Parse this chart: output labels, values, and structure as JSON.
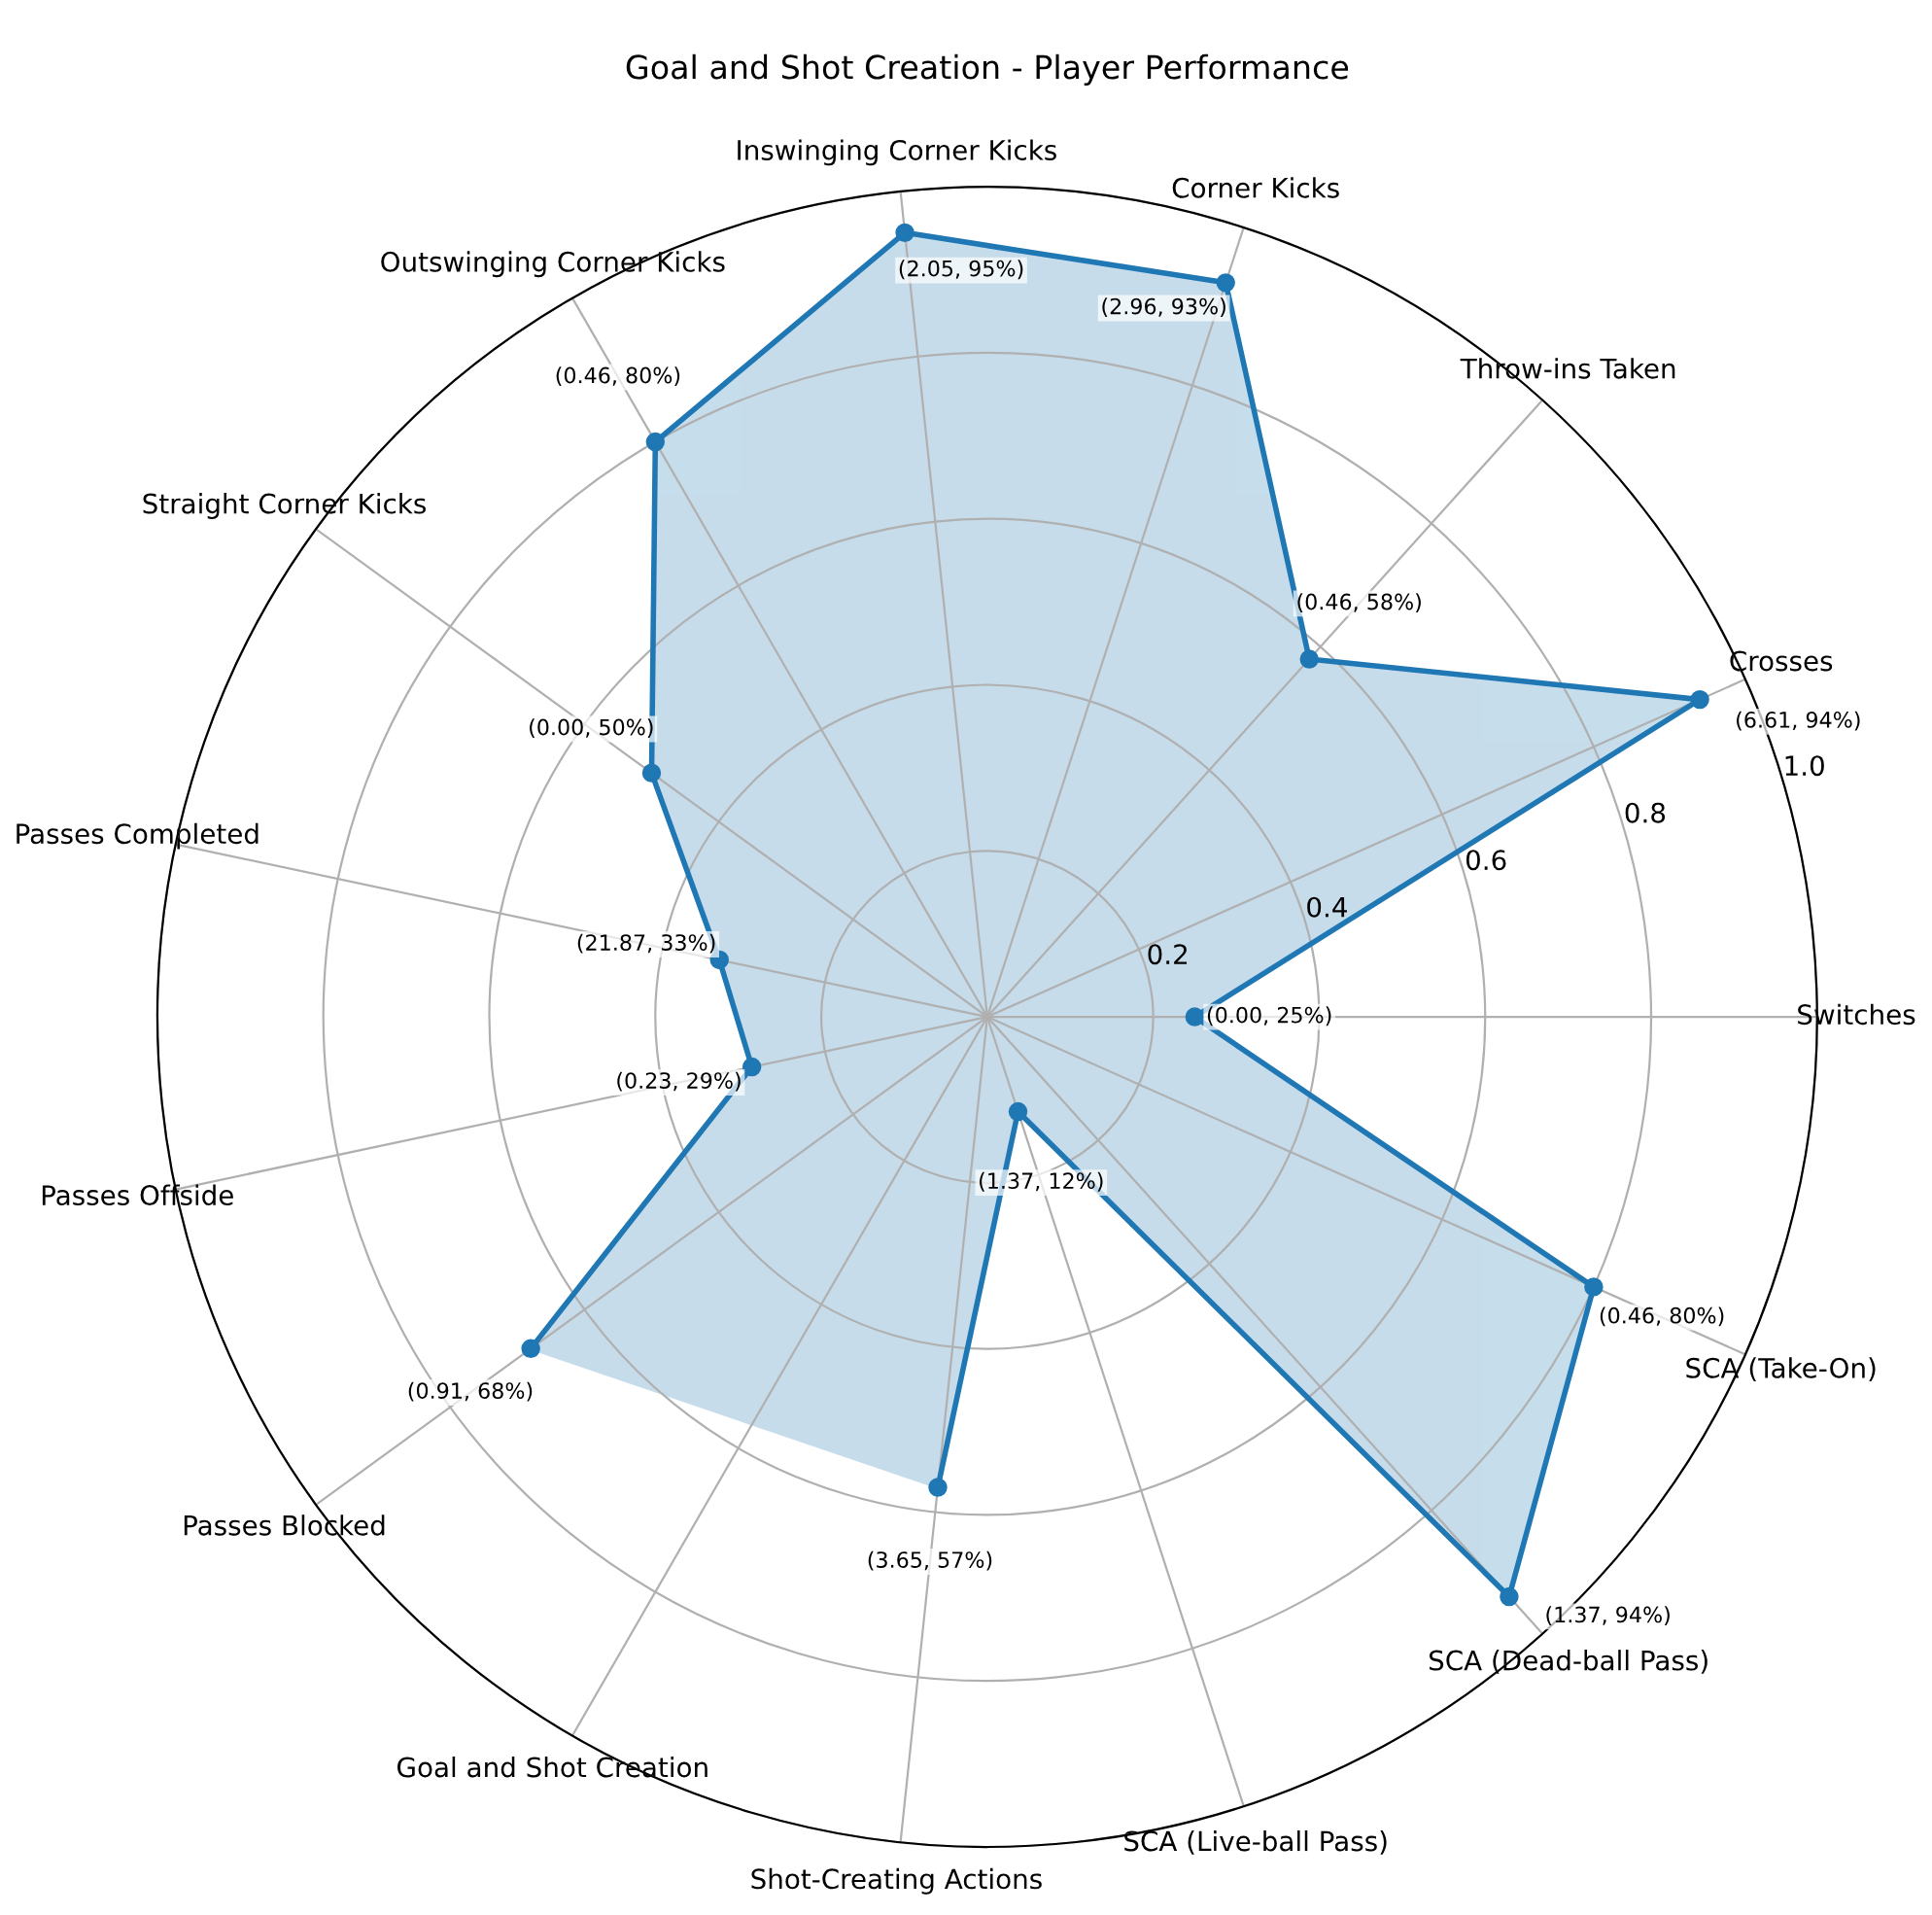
{
  "chart_data": {
    "type": "radar",
    "title": "Goal and Shot Creation - Player Performance",
    "categories": [
      "Inswinging Corner Kicks",
      "Corner Kicks",
      "Throw-ins Taken",
      "Crosses",
      "Switches",
      "SCA (Take-On)",
      "SCA (Dead-ball Pass)",
      "SCA (Live-ball Pass)",
      "Shot-Creating Actions",
      "Goal and Shot Creation",
      "Passes Blocked",
      "Passes Offside",
      "Passes Completed",
      "Straight Corner Kicks",
      "Outswinging Corner Kicks"
    ],
    "series": [
      {
        "color": "#1f77b4",
        "values": [
          0.95,
          0.93,
          0.58,
          0.94,
          0.25,
          0.8,
          0.94,
          0.12,
          0.57,
          null,
          0.68,
          0.29,
          0.33,
          0.5,
          0.8
        ],
        "value_labels": [
          "(2.05, 95%)",
          "(2.96, 93%)",
          "(0.46, 58%)",
          "(6.61, 94%)",
          "(0.00, 25%)",
          "(0.46, 80%)",
          "(1.37, 94%)",
          "(1.37, 12%)",
          "(3.65, 57%)",
          null,
          "(0.91, 68%)",
          "(0.23, 29%)",
          "(21.87, 33%)",
          "(0.00, 50%)",
          "(0.46, 80%)"
        ]
      }
    ],
    "ylim": [
      0,
      1
    ],
    "yticks": [
      0.2,
      0.4,
      0.6,
      0.8,
      {
        "value": 1,
        "label": "1.0"
      }
    ],
    "grid": true,
    "marker": "circle",
    "line_style": "solid"
  }
}
